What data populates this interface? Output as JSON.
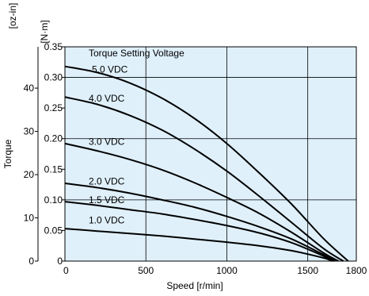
{
  "chart_data": {
    "type": "line",
    "title": "",
    "xlabel": "Speed [r/min]",
    "ylabel": "Torque",
    "y_unit_primary": "[N·m]",
    "y_unit_secondary": "[oz-in]",
    "xlim": [
      0,
      1800
    ],
    "ylim": [
      0,
      0.35
    ],
    "xticks": [
      "0",
      "500",
      "1000",
      "1500",
      "1800"
    ],
    "xtick_values": [
      0,
      500,
      1000,
      1500,
      1800
    ],
    "yticks": [
      "0",
      "0.05",
      "0.10",
      "0.15",
      "0.20",
      "0.25",
      "0.30",
      "0.35"
    ],
    "ytick_values": [
      0,
      0.05,
      0.1,
      0.15,
      0.2,
      0.25,
      0.3,
      0.35
    ],
    "yticks_secondary": [
      "0",
      "10",
      "20",
      "30",
      "40"
    ],
    "yticks_secondary_values": [
      0,
      10,
      20,
      30,
      40
    ],
    "secondary_per_primary": 141.6,
    "grid": true,
    "legend_title": "Torque Setting Voltage",
    "background_color": "#dff0fb",
    "line_color": "#000000",
    "series": [
      {
        "name": "5.0 VDC",
        "x": [
          0,
          200,
          400,
          600,
          800,
          1000,
          1200,
          1400,
          1600,
          1750
        ],
        "y": [
          0.318,
          0.308,
          0.291,
          0.266,
          0.233,
          0.192,
          0.144,
          0.093,
          0.036,
          0.0
        ]
      },
      {
        "name": "4.0 VDC",
        "x": [
          0,
          200,
          400,
          600,
          800,
          1000,
          1200,
          1400,
          1600,
          1720
        ],
        "y": [
          0.268,
          0.256,
          0.238,
          0.214,
          0.183,
          0.147,
          0.106,
          0.063,
          0.02,
          0.0
        ]
      },
      {
        "name": "3.0 VDC",
        "x": [
          0,
          200,
          400,
          600,
          800,
          1000,
          1200,
          1400,
          1600,
          1690
        ],
        "y": [
          0.192,
          0.18,
          0.166,
          0.149,
          0.128,
          0.104,
          0.078,
          0.047,
          0.013,
          0.0
        ]
      },
      {
        "name": "2.0 VDC",
        "x": [
          0,
          200,
          400,
          600,
          800,
          1000,
          1200,
          1400,
          1600,
          1670
        ],
        "y": [
          0.127,
          0.12,
          0.111,
          0.1,
          0.088,
          0.073,
          0.056,
          0.036,
          0.01,
          0.0
        ]
      },
      {
        "name": "1.5 VDC",
        "x": [
          0,
          200,
          400,
          600,
          800,
          1000,
          1200,
          1400,
          1600,
          1660
        ],
        "y": [
          0.097,
          0.091,
          0.084,
          0.077,
          0.068,
          0.058,
          0.046,
          0.03,
          0.008,
          0.0
        ]
      },
      {
        "name": "1.0 VDC",
        "x": [
          0,
          200,
          400,
          600,
          800,
          1000,
          1200,
          1400,
          1600,
          1650
        ],
        "y": [
          0.053,
          0.049,
          0.045,
          0.041,
          0.036,
          0.031,
          0.025,
          0.017,
          0.005,
          0.0
        ]
      }
    ]
  }
}
